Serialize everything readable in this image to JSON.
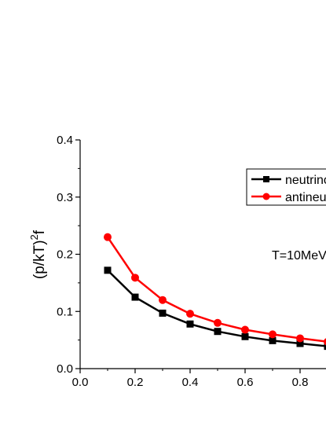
{
  "chart_data": {
    "type": "line",
    "title": "",
    "xlabel": "",
    "ylabel": "(p/kT)^2 f",
    "ylabel_base": "(p/kT)",
    "ylabel_sup": "2",
    "ylabel_tail": "f",
    "xlim": [
      0.0,
      0.94
    ],
    "ylim": [
      0.0,
      0.4
    ],
    "x_ticks": [
      "0.0",
      "0.2",
      "0.4",
      "0.6",
      "0.8"
    ],
    "y_ticks": [
      "0.0",
      "0.1",
      "0.2",
      "0.3",
      "0.4"
    ],
    "grid": false,
    "legend_position": "top-right",
    "annotation": "T=10MeV",
    "x": [
      0.1,
      0.2,
      0.3,
      0.4,
      0.5,
      0.6,
      0.7,
      0.8,
      0.9
    ],
    "series": [
      {
        "name": "neutrino",
        "color": "#000000",
        "marker": "square",
        "values": [
          0.172,
          0.125,
          0.097,
          0.078,
          0.065,
          0.056,
          0.049,
          0.044,
          0.039
        ]
      },
      {
        "name": "antineutrino",
        "color": "#ff0000",
        "marker": "circle",
        "values": [
          0.23,
          0.159,
          0.12,
          0.096,
          0.08,
          0.068,
          0.06,
          0.053,
          0.047
        ]
      }
    ]
  }
}
